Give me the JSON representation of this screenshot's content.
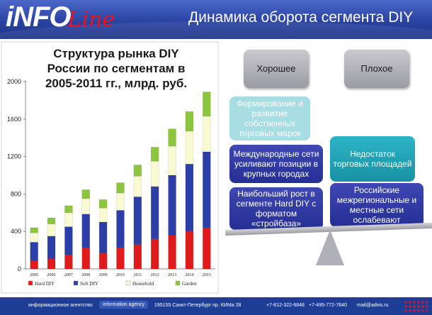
{
  "header": {
    "logo_info": "iNFO",
    "logo_line": "Line",
    "title": "Динамика оборота сегмента DIY"
  },
  "chart_title_lines": [
    "Структура рынка DIY",
    "России по сегментам в",
    "2005-2011 гг., млрд. руб."
  ],
  "chart_data": {
    "type": "bar",
    "stacked": true,
    "title": "Структура рынка DIY России по сегментам в 2005-2011 гг., млрд. руб.",
    "categories": [
      "2005",
      "2006",
      "2007",
      "2008",
      "2009",
      "2010",
      "2011",
      "2012",
      "2013",
      "2014",
      "2015"
    ],
    "yticks": [
      "0",
      "400",
      "800",
      "1200",
      "1600",
      "2000"
    ],
    "ylim": [
      0,
      2000
    ],
    "grid": false,
    "legend_position": "bottom",
    "series": [
      {
        "name": "Hard DIY",
        "color": "#e01b1b",
        "values": [
          85,
          110,
          150,
          225,
          170,
          225,
          260,
          320,
          360,
          400,
          440
        ]
      },
      {
        "name": "Soft DIY",
        "color": "#2c3ea8",
        "values": [
          200,
          240,
          300,
          360,
          330,
          400,
          510,
          560,
          640,
          720,
          810
        ]
      },
      {
        "name": "Household",
        "color": "#fafad2",
        "values": [
          100,
          130,
          150,
          165,
          150,
          185,
          220,
          270,
          310,
          350,
          380
        ]
      },
      {
        "name": "Garden",
        "color": "#8cc63f",
        "values": [
          55,
          65,
          75,
          95,
          90,
          110,
          120,
          150,
          185,
          210,
          260
        ]
      }
    ]
  },
  "diagram": {
    "good_label": "Хорошее",
    "bad_label": "Плохое",
    "left_items": [
      "Формирование и развитие собственных торговых марок",
      "Международные сети усиливают позиции в крупных городах",
      "Наибольший рост в сегменте Hard DIY с форматом «стройбаза»"
    ],
    "right_items": [
      "Недостаток торговых площадей",
      "Российские межрегиональные и местные сети ослабевают"
    ]
  },
  "footer": {
    "agency": "информационное агентство",
    "agency_en": "information agency",
    "address": "195155 Санкт-Петербург пр. КИМа 28",
    "phone1": "+7-812-322-6848",
    "phone2": "+7-495-772-7640",
    "email": "mail@advis.ru"
  }
}
